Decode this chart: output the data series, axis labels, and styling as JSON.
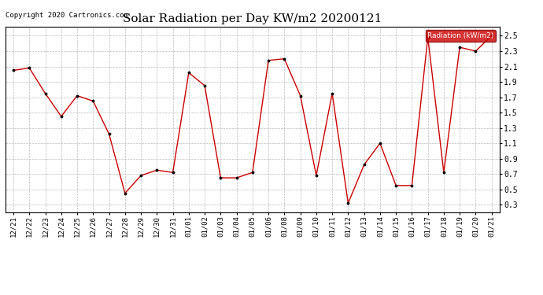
{
  "title": "Solar Radiation per Day KW/m2 20200121",
  "copyright": "Copyright 2020 Cartronics.com",
  "legend_label": "Radiation (kW/m2)",
  "background_color": "#ffffff",
  "plot_bg_color": "#ffffff",
  "grid_color": "#bbbbbb",
  "line_color": "#cc0000",
  "marker_color": "#000000",
  "legend_bg": "#cc0000",
  "legend_text_color": "#ffffff",
  "x_labels": [
    "12/21",
    "12/22",
    "12/23",
    "12/24",
    "12/25",
    "12/26",
    "12/27",
    "12/28",
    "12/29",
    "12/30",
    "12/31",
    "01/01",
    "01/02",
    "01/03",
    "01/04",
    "01/05",
    "01/06",
    "01/08",
    "01/09",
    "01/10",
    "01/11",
    "01/12",
    "01/13",
    "01/14",
    "01/15",
    "01/16",
    "01/17",
    "01/18",
    "01/19",
    "01/20",
    "01/21"
  ],
  "y_values": [
    2.05,
    2.08,
    1.75,
    1.45,
    1.72,
    1.65,
    1.22,
    0.45,
    0.68,
    0.75,
    0.72,
    2.02,
    1.85,
    0.65,
    0.65,
    0.72,
    2.18,
    2.2,
    1.72,
    0.68,
    1.75,
    0.32,
    0.82,
    1.1,
    0.55,
    0.55,
    2.48,
    0.72,
    2.35,
    2.3,
    2.5
  ],
  "ylim": [
    0.2,
    2.62
  ],
  "yticks": [
    0.3,
    0.5,
    0.7,
    0.9,
    1.1,
    1.3,
    1.5,
    1.7,
    1.9,
    2.1,
    2.3,
    2.5
  ],
  "title_fontsize": 11,
  "tick_fontsize": 6.5,
  "copyright_fontsize": 6.5
}
